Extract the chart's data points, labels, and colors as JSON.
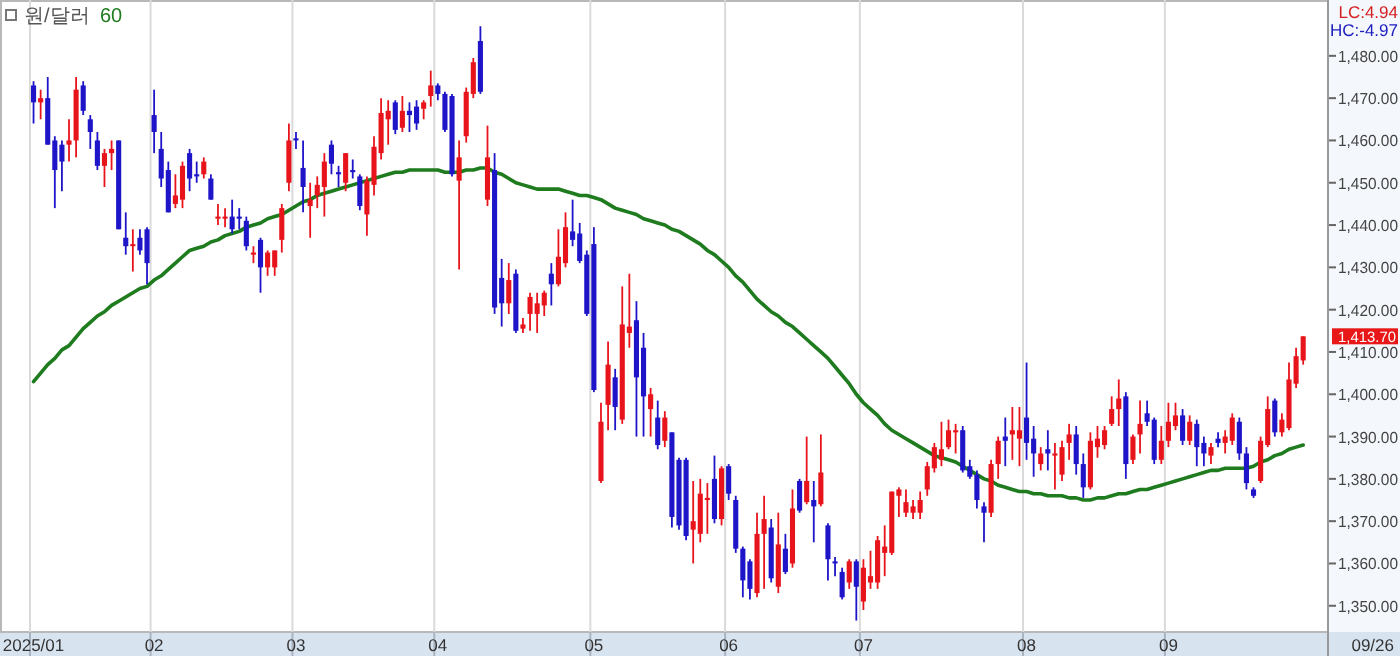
{
  "chart_data": {
    "type": "candlestick",
    "categories": [
      "2025/01",
      null,
      null,
      null,
      null,
      null,
      null,
      null,
      null,
      null,
      null,
      null,
      null,
      null,
      null,
      null,
      null,
      "02",
      null,
      null,
      null,
      null,
      null,
      null,
      null,
      null,
      null,
      null,
      null,
      null,
      null,
      null,
      null,
      null,
      null,
      null,
      null,
      "03",
      null,
      null,
      null,
      null,
      null,
      null,
      null,
      null,
      null,
      null,
      null,
      null,
      null,
      null,
      null,
      null,
      null,
      null,
      null,
      "04",
      null,
      null,
      null,
      null,
      null,
      null,
      null,
      null,
      null,
      null,
      null,
      null,
      null,
      null,
      null,
      null,
      null,
      null,
      null,
      null,
      null,
      "05",
      null,
      null,
      null,
      null,
      null,
      null,
      null,
      null,
      null,
      null,
      null,
      null,
      null,
      null,
      null,
      null,
      null,
      null,
      "06",
      null,
      null,
      null,
      null,
      null,
      null,
      null,
      null,
      null,
      null,
      null,
      null,
      null,
      null,
      null,
      null,
      null,
      null,
      "07",
      null,
      null,
      null,
      null,
      null,
      null,
      null,
      null,
      null,
      null,
      null,
      null,
      null,
      null,
      null,
      null,
      null,
      null,
      null,
      null,
      null,
      null,
      "08",
      null,
      null,
      null,
      null,
      null,
      null,
      null,
      null,
      null,
      null,
      null,
      null,
      null,
      null,
      null,
      null,
      null,
      null,
      null,
      "09",
      null,
      null,
      null,
      null,
      null,
      null,
      null,
      null,
      null,
      null,
      null,
      null,
      null,
      null,
      null,
      null,
      null,
      null,
      null
    ],
    "title": "원/달러",
    "ohlc": [
      [
        1473,
        1474,
        1464,
        1469
      ],
      [
        1469,
        1472,
        1465,
        1470
      ],
      [
        1470,
        1475,
        1459,
        1459
      ],
      [
        1460,
        1461,
        1444,
        1453
      ],
      [
        1459,
        1460,
        1448,
        1455
      ],
      [
        1459,
        1465,
        1455,
        1460
      ],
      [
        1460,
        1475,
        1456,
        1472
      ],
      [
        1473,
        1474,
        1466,
        1467
      ],
      [
        1465,
        1466,
        1458,
        1462
      ],
      [
        1460,
        1462,
        1453,
        1454
      ],
      [
        1454,
        1458,
        1449,
        1457
      ],
      [
        1457,
        1460,
        1453,
        1458
      ],
      [
        1460,
        1460,
        1439,
        1439
      ],
      [
        1437,
        1443,
        1433,
        1435
      ],
      [
        1435,
        1439,
        1429,
        1435.5
      ],
      [
        1437,
        1439,
        1433,
        1434
      ],
      [
        1439,
        1439.5,
        1426,
        1431
      ],
      [
        1466,
        1472,
        1457,
        1462
      ],
      [
        1458,
        1462,
        1449,
        1451
      ],
      [
        1453,
        1455,
        1443,
        1443
      ],
      [
        1445,
        1452,
        1444,
        1447
      ],
      [
        1446,
        1455,
        1444,
        1454
      ],
      [
        1457,
        1458,
        1448,
        1451
      ],
      [
        1452,
        1455,
        1450,
        1451.5
      ],
      [
        1452,
        1456,
        1451,
        1455
      ],
      [
        1451,
        1452,
        1446,
        1446
      ],
      [
        1441.5,
        1445,
        1440,
        1442
      ],
      [
        1441.5,
        1444,
        1439.5,
        1442
      ],
      [
        1442,
        1446,
        1438,
        1439
      ],
      [
        1442,
        1444,
        1439,
        1441.5
      ],
      [
        1441,
        1442,
        1434,
        1435
      ],
      [
        1433,
        1435,
        1431,
        1433.5
      ],
      [
        1436.5,
        1437,
        1424,
        1430
      ],
      [
        1430,
        1434,
        1428,
        1433.5
      ],
      [
        1430,
        1434,
        1428,
        1434
      ],
      [
        1436.5,
        1445,
        1433.5,
        1444
      ],
      [
        1450,
        1464,
        1448,
        1460
      ],
      [
        1460.5,
        1462,
        1458,
        1460
      ],
      [
        1453.5,
        1460,
        1443,
        1449
      ],
      [
        1444.5,
        1450,
        1437,
        1446
      ],
      [
        1447,
        1451.5,
        1444,
        1449.5
      ],
      [
        1449,
        1457,
        1442,
        1455
      ],
      [
        1459,
        1460,
        1452,
        1454.5
      ],
      [
        1452.5,
        1454,
        1449,
        1452
      ],
      [
        1450,
        1457,
        1448,
        1457
      ],
      [
        1453,
        1455.5,
        1451,
        1452.5
      ],
      [
        1451.5,
        1452,
        1443.5,
        1444.5
      ],
      [
        1442.5,
        1451.5,
        1437.5,
        1450.5
      ],
      [
        1449.5,
        1461,
        1447,
        1458.5
      ],
      [
        1457,
        1470,
        1455.5,
        1466.5
      ],
      [
        1465,
        1469.5,
        1459,
        1467
      ],
      [
        1469,
        1469.5,
        1461.5,
        1462.5
      ],
      [
        1463,
        1470.5,
        1462,
        1467
      ],
      [
        1467,
        1469,
        1462,
        1466
      ],
      [
        1468,
        1469.5,
        1462.5,
        1464
      ],
      [
        1467.5,
        1469.5,
        1465,
        1469
      ],
      [
        1470.5,
        1476.5,
        1468,
        1473
      ],
      [
        1473,
        1473.5,
        1469.5,
        1471
      ],
      [
        1471,
        1471.5,
        1462,
        1462.5
      ],
      [
        1470.5,
        1471,
        1451.5,
        1452
      ],
      [
        1450.5,
        1460,
        1429.5,
        1456
      ],
      [
        1461,
        1472.5,
        1459.5,
        1471.5
      ],
      [
        1471,
        1479.5,
        1470,
        1478.5
      ],
      [
        1483.5,
        1487,
        1471,
        1471.5
      ],
      [
        1446,
        1463.5,
        1444.5,
        1456
      ],
      [
        1453,
        1457,
        1419,
        1420.5
      ],
      [
        1427.5,
        1432,
        1416,
        1421.5
      ],
      [
        1421.5,
        1431,
        1419,
        1427
      ],
      [
        1428.5,
        1429.5,
        1414.5,
        1415
      ],
      [
        1415.5,
        1418,
        1414.5,
        1416.5
      ],
      [
        1419,
        1424,
        1415,
        1423
      ],
      [
        1419,
        1424,
        1414.5,
        1421.5
      ],
      [
        1421,
        1424.5,
        1418.5,
        1424
      ],
      [
        1428.5,
        1431,
        1421,
        1426
      ],
      [
        1426,
        1439,
        1425.5,
        1432.5
      ],
      [
        1431,
        1443,
        1430,
        1439.5
      ],
      [
        1438.5,
        1446,
        1435,
        1436.5
      ],
      [
        1438,
        1440.5,
        1431,
        1431.5
      ],
      [
        1433,
        1434,
        1418.5,
        1419
      ],
      [
        1435.5,
        1439.5,
        1400.5,
        1401
      ],
      [
        1379.5,
        1398,
        1379,
        1393.5
      ],
      [
        1397.5,
        1412.5,
        1391.5,
        1407
      ],
      [
        1404,
        1406,
        1391.5,
        1397
      ],
      [
        1394,
        1425.5,
        1393,
        1416.5
      ],
      [
        1414.5,
        1428.5,
        1411,
        1416
      ],
      [
        1417.5,
        1422,
        1390,
        1404
      ],
      [
        1411,
        1414.5,
        1390,
        1399.5
      ],
      [
        1396.5,
        1401.5,
        1390,
        1400
      ],
      [
        1394.5,
        1398.5,
        1387,
        1388
      ],
      [
        1389,
        1396,
        1387.5,
        1394.5
      ],
      [
        1391,
        1391,
        1368.5,
        1371
      ],
      [
        1384.5,
        1385,
        1368,
        1369
      ],
      [
        1384.5,
        1385,
        1365.5,
        1366.5
      ],
      [
        1368,
        1379.5,
        1360,
        1370
      ],
      [
        1367,
        1380,
        1365,
        1376.5
      ],
      [
        1375,
        1379,
        1367,
        1375.5
      ],
      [
        1380,
        1385.5,
        1369.5,
        1370.5
      ],
      [
        1370.5,
        1383,
        1369,
        1382.5
      ],
      [
        1383,
        1383.5,
        1375,
        1376.5
      ],
      [
        1375,
        1376,
        1362.5,
        1363.5
      ],
      [
        1363.5,
        1364,
        1352,
        1356
      ],
      [
        1360.5,
        1361,
        1351.5,
        1354
      ],
      [
        1353,
        1372,
        1352,
        1367
      ],
      [
        1367,
        1376,
        1354,
        1370.5
      ],
      [
        1368.5,
        1370.5,
        1355.5,
        1356.5
      ],
      [
        1354.5,
        1372,
        1353,
        1364.5
      ],
      [
        1363.5,
        1367,
        1357.5,
        1358
      ],
      [
        1360,
        1377.5,
        1359,
        1373
      ],
      [
        1379.5,
        1380,
        1372,
        1372.5
      ],
      [
        1374.5,
        1390,
        1374,
        1379.5
      ],
      [
        1375,
        1379.5,
        1365,
        1373.5
      ],
      [
        1374,
        1390.5,
        1373.5,
        1381.5
      ],
      [
        1369,
        1369.5,
        1356,
        1361
      ],
      [
        1360.5,
        1361.5,
        1357,
        1360
      ],
      [
        1358,
        1359,
        1351.5,
        1352
      ],
      [
        1355.5,
        1361,
        1354,
        1360.5
      ],
      [
        1360.5,
        1361,
        1346.5,
        1354.5
      ],
      [
        1351,
        1361,
        1349,
        1359
      ],
      [
        1355.5,
        1363,
        1354,
        1357
      ],
      [
        1355.5,
        1366.5,
        1354,
        1365.5
      ],
      [
        1362.5,
        1369,
        1357,
        1364
      ],
      [
        1362.5,
        1377,
        1362,
        1377
      ],
      [
        1376,
        1378,
        1371,
        1377.5
      ],
      [
        1372,
        1377.5,
        1371,
        1374.5
      ],
      [
        1372,
        1375,
        1370.5,
        1373.5
      ],
      [
        1372,
        1377,
        1370.5,
        1375
      ],
      [
        1377.5,
        1384,
        1376,
        1383
      ],
      [
        1382.5,
        1388.5,
        1381.5,
        1387.5
      ],
      [
        1384.5,
        1393.5,
        1383,
        1387
      ],
      [
        1387.5,
        1394,
        1387,
        1391.5
      ],
      [
        1391,
        1393,
        1386,
        1391.5
      ],
      [
        1391.5,
        1392.5,
        1381.5,
        1382
      ],
      [
        1383,
        1384.5,
        1380,
        1380.5
      ],
      [
        1381,
        1382,
        1373,
        1375
      ],
      [
        1373.5,
        1374.5,
        1365,
        1372
      ],
      [
        1372,
        1384.5,
        1371,
        1383.5
      ],
      [
        1383.5,
        1390,
        1380,
        1389
      ],
      [
        1390,
        1394.5,
        1383,
        1389
      ],
      [
        1390.5,
        1397,
        1384.5,
        1391.5
      ],
      [
        1389.5,
        1397,
        1383,
        1391.5
      ],
      [
        1394.5,
        1407.5,
        1384.5,
        1388.5
      ],
      [
        1389.5,
        1392.5,
        1380.5,
        1386
      ],
      [
        1383.5,
        1387.5,
        1382,
        1386
      ],
      [
        1387,
        1391.5,
        1382,
        1386
      ],
      [
        1385.5,
        1388.5,
        1377.5,
        1386
      ],
      [
        1381,
        1389,
        1379.5,
        1387.5
      ],
      [
        1388.5,
        1393,
        1384.5,
        1390.5
      ],
      [
        1390.5,
        1392.5,
        1381,
        1383.5
      ],
      [
        1383.5,
        1386,
        1375.5,
        1378
      ],
      [
        1378,
        1391,
        1377.5,
        1389
      ],
      [
        1387.5,
        1392.5,
        1385,
        1389.5
      ],
      [
        1388,
        1392.5,
        1387,
        1391.5
      ],
      [
        1393,
        1399.5,
        1392.5,
        1396.5
      ],
      [
        1396.5,
        1403.5,
        1392.5,
        1399
      ],
      [
        1399.5,
        1400.5,
        1380,
        1383.5
      ],
      [
        1384.5,
        1390.5,
        1383.5,
        1390
      ],
      [
        1390.5,
        1398.5,
        1386,
        1393
      ],
      [
        1395.5,
        1398.5,
        1392.5,
        1393.5
      ],
      [
        1394,
        1394.5,
        1383.5,
        1384.5
      ],
      [
        1384.5,
        1392.5,
        1383.5,
        1389
      ],
      [
        1389,
        1398,
        1387.5,
        1393.5
      ],
      [
        1392.5,
        1398,
        1391.5,
        1395
      ],
      [
        1395,
        1396.5,
        1388,
        1389
      ],
      [
        1389,
        1395,
        1388,
        1393.5
      ],
      [
        1393,
        1394,
        1383,
        1387.5
      ],
      [
        1388.5,
        1390,
        1383,
        1386
      ],
      [
        1385.5,
        1388.5,
        1383.5,
        1387.5
      ],
      [
        1389.5,
        1391,
        1387.5,
        1388.5
      ],
      [
        1388.5,
        1391.5,
        1386,
        1390
      ],
      [
        1389,
        1395.5,
        1388,
        1394.5
      ],
      [
        1393.5,
        1394.5,
        1384.5,
        1386
      ],
      [
        1386,
        1387.5,
        1377.5,
        1379
      ],
      [
        1377.5,
        1378,
        1375.5,
        1376
      ],
      [
        1379.5,
        1390,
        1379,
        1389
      ],
      [
        1388,
        1399.5,
        1387.5,
        1396.5
      ],
      [
        1398.5,
        1399,
        1390,
        1391
      ],
      [
        1391,
        1395.5,
        1390,
        1394
      ],
      [
        1392,
        1407.5,
        1391.5,
        1403.5
      ],
      [
        1402.5,
        1411,
        1401.5,
        1409
      ],
      [
        1408,
        1413.7,
        1407,
        1413.7
      ]
    ],
    "colors": [
      "#1e14c8",
      "#e8141c",
      "#1e14c8",
      "#1e14c8",
      "#1e14c8",
      "#e8141c",
      "#e8141c",
      "#1e14c8",
      "#1e14c8",
      "#1e14c8",
      "#e8141c",
      "#e8141c",
      "#1e14c8",
      "#1e14c8",
      "#e8141c",
      "#1e14c8",
      "#1e14c8",
      "#1e14c8",
      "#1e14c8",
      "#1e14c8",
      "#e8141c",
      "#e8141c",
      "#1e14c8",
      "#1e14c8",
      "#e8141c",
      "#1e14c8",
      "#e8141c",
      "#e8141c",
      "#1e14c8",
      "#1e14c8",
      "#1e14c8",
      "#e8141c",
      "#1e14c8",
      "#e8141c",
      "#e8141c",
      "#e8141c",
      "#e8141c",
      "#1e14c8",
      "#1e14c8",
      "#e8141c",
      "#e8141c",
      "#e8141c",
      "#1e14c8",
      "#1e14c8",
      "#e8141c",
      "#1e14c8",
      "#1e14c8",
      "#e8141c",
      "#e8141c",
      "#e8141c",
      "#e8141c",
      "#1e14c8",
      "#e8141c",
      "#1e14c8",
      "#1e14c8",
      "#e8141c",
      "#e8141c",
      "#1e14c8",
      "#1e14c8",
      "#1e14c8",
      "#e8141c",
      "#e8141c",
      "#e8141c",
      "#1e14c8",
      "#e8141c",
      "#1e14c8",
      "#1e14c8",
      "#e8141c",
      "#1e14c8",
      "#e8141c",
      "#e8141c",
      "#e8141c",
      "#e8141c",
      "#1e14c8",
      "#e8141c",
      "#e8141c",
      "#1e14c8",
      "#1e14c8",
      "#1e14c8",
      "#1e14c8",
      "#e8141c",
      "#e8141c",
      "#1e14c8",
      "#e8141c",
      "#e8141c",
      "#1e14c8",
      "#1e14c8",
      "#e8141c",
      "#1e14c8",
      "#e8141c",
      "#1e14c8",
      "#1e14c8",
      "#1e14c8",
      "#e8141c",
      "#e8141c",
      "#e8141c",
      "#1e14c8",
      "#e8141c",
      "#1e14c8",
      "#1e14c8",
      "#1e14c8",
      "#1e14c8",
      "#e8141c",
      "#e8141c",
      "#1e14c8",
      "#e8141c",
      "#1e14c8",
      "#e8141c",
      "#1e14c8",
      "#e8141c",
      "#1e14c8",
      "#e8141c",
      "#1e14c8",
      "#1e14c8",
      "#1e14c8",
      "#e8141c",
      "#1e14c8",
      "#e8141c",
      "#e8141c",
      "#e8141c",
      "#e8141c",
      "#e8141c",
      "#e8141c",
      "#e8141c",
      "#e8141c",
      "#e8141c",
      "#e8141c",
      "#e8141c",
      "#e8141c",
      "#e8141c",
      "#e8141c",
      "#1e14c8",
      "#1e14c8",
      "#1e14c8",
      "#1e14c8",
      "#e8141c",
      "#e8141c",
      "#1e14c8",
      "#e8141c",
      "#e8141c",
      "#1e14c8",
      "#1e14c8",
      "#e8141c",
      "#1e14c8",
      "#e8141c",
      "#e8141c",
      "#e8141c",
      "#1e14c8",
      "#1e14c8",
      "#e8141c",
      "#e8141c",
      "#e8141c",
      "#e8141c",
      "#e8141c",
      "#1e14c8",
      "#e8141c",
      "#e8141c",
      "#1e14c8",
      "#1e14c8",
      "#e8141c",
      "#e8141c",
      "#e8141c",
      "#1e14c8",
      "#e8141c",
      "#1e14c8",
      "#1e14c8",
      "#e8141c",
      "#1e14c8",
      "#e8141c",
      "#e8141c",
      "#1e14c8",
      "#1e14c8",
      "#1e14c8",
      "#e8141c",
      "#e8141c",
      "#1e14c8",
      "#e8141c",
      "#e8141c",
      "#e8141c",
      "#e8141c"
    ],
    "series": [
      {
        "name": "60",
        "type": "line",
        "color": "#1e7b1e",
        "values": [
          1403,
          1405,
          1407,
          1408.5,
          1410.5,
          1411.5,
          1413.5,
          1415.5,
          1417,
          1418.5,
          1419.5,
          1421,
          1422,
          1423,
          1424,
          1425,
          1425.5,
          1427,
          1428,
          1429.5,
          1431,
          1432.5,
          1434,
          1434.5,
          1435,
          1436,
          1436.5,
          1437.5,
          1438,
          1438.5,
          1439.5,
          1440,
          1440.5,
          1441.5,
          1442,
          1442.5,
          1443.5,
          1444.5,
          1445.5,
          1446,
          1447,
          1447.5,
          1448,
          1448.5,
          1449,
          1449.5,
          1450,
          1450.5,
          1451,
          1451.5,
          1452,
          1452.5,
          1452.5,
          1453,
          1453,
          1453,
          1453,
          1453,
          1452.5,
          1452.5,
          1452.5,
          1453,
          1453,
          1453.5,
          1453.5,
          1452.5,
          1452,
          1451,
          1450,
          1449.5,
          1449,
          1448.5,
          1448.5,
          1448.5,
          1448.5,
          1448,
          1447.5,
          1447,
          1447,
          1446.5,
          1446,
          1445,
          1444,
          1443.5,
          1443,
          1442.5,
          1441.5,
          1441,
          1440.5,
          1440,
          1439,
          1438.5,
          1437.5,
          1436.5,
          1435.5,
          1434,
          1433,
          1431.5,
          1430,
          1428,
          1426.5,
          1424.5,
          1422.5,
          1421,
          1419.5,
          1418.5,
          1417,
          1416,
          1414.5,
          1413,
          1411.5,
          1410,
          1408.5,
          1406.5,
          1404.5,
          1402.5,
          1400,
          1398,
          1396.5,
          1395,
          1393,
          1391.5,
          1390.5,
          1389.5,
          1388.5,
          1387.5,
          1386.5,
          1385.5,
          1385,
          1384.5,
          1384,
          1383,
          1382,
          1381,
          1380,
          1379.5,
          1378.5,
          1378,
          1377.5,
          1377,
          1377,
          1376.5,
          1376.5,
          1376,
          1376,
          1376,
          1375.5,
          1375.5,
          1375,
          1375,
          1375.5,
          1375.5,
          1376,
          1376.5,
          1376.5,
          1377,
          1377.5,
          1377.5,
          1378,
          1378.5,
          1379,
          1379.5,
          1380,
          1380.5,
          1381,
          1381.5,
          1382,
          1382,
          1382.5,
          1382.5,
          1382.5,
          1382.5,
          1383,
          1384,
          1384.5,
          1385.5,
          1386,
          1387,
          1387.5,
          1388
        ]
      }
    ],
    "ylim": [
      1343.8,
      1493.2
    ],
    "yticks": [
      {
        "value": 1350,
        "label": "1,350.00"
      },
      {
        "value": 1360,
        "label": "1,360.00"
      },
      {
        "value": 1370,
        "label": "1,370.00"
      },
      {
        "value": 1380,
        "label": "1,380.00"
      },
      {
        "value": 1390,
        "label": "1,390.00"
      },
      {
        "value": 1400,
        "label": "1,400.00"
      },
      {
        "value": 1410,
        "label": "1,410.00"
      },
      {
        "value": 1420,
        "label": "1,420.00"
      },
      {
        "value": 1430,
        "label": "1,430.00"
      },
      {
        "value": 1440,
        "label": "1,440.00"
      },
      {
        "value": 1450,
        "label": "1,450.00"
      },
      {
        "value": 1460,
        "label": "1,460.00"
      },
      {
        "value": 1470,
        "label": "1,470.00"
      },
      {
        "value": 1480,
        "label": "1,480.00"
      }
    ],
    "grid": "x",
    "legend": "top left",
    "annotations": [
      "LC:4.94",
      "HC:-4.97",
      "09/26",
      "1,413.70"
    ]
  }
}
